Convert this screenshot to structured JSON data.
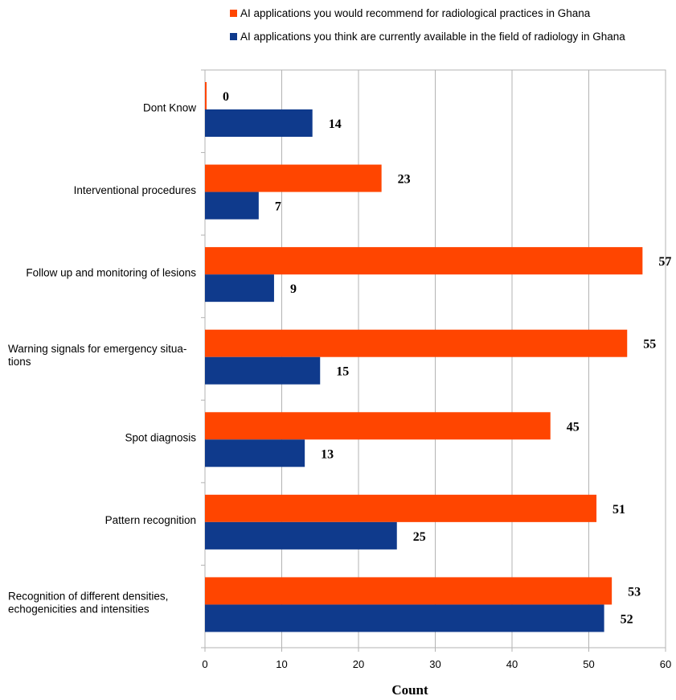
{
  "chart_data": {
    "type": "bar",
    "orientation": "horizontal",
    "title": "",
    "xlabel": "Count",
    "ylabel": "",
    "xlim": [
      0,
      60
    ],
    "xticks": [
      0,
      10,
      20,
      30,
      40,
      50,
      60
    ],
    "grid": true,
    "legend_position": "top",
    "categories": [
      "Dont Know",
      "Interventional procedures",
      "Follow up and monitoring of lesions",
      "Warning signals for emergency situa-\ntions",
      "Spot diagnosis",
      "Pattern recognition",
      "Recognition of different densities,\nechogenicities and intensities"
    ],
    "series": [
      {
        "name": "AI applications you would recommend for radiological practices in Ghana",
        "color": "#ff4500",
        "values": [
          0,
          23,
          57,
          55,
          45,
          51,
          53
        ]
      },
      {
        "name": "AI applications you think are currently available in the field of radiology in Ghana",
        "color": "#0f3a8c",
        "values": [
          14,
          7,
          9,
          15,
          13,
          25,
          52
        ]
      }
    ]
  }
}
